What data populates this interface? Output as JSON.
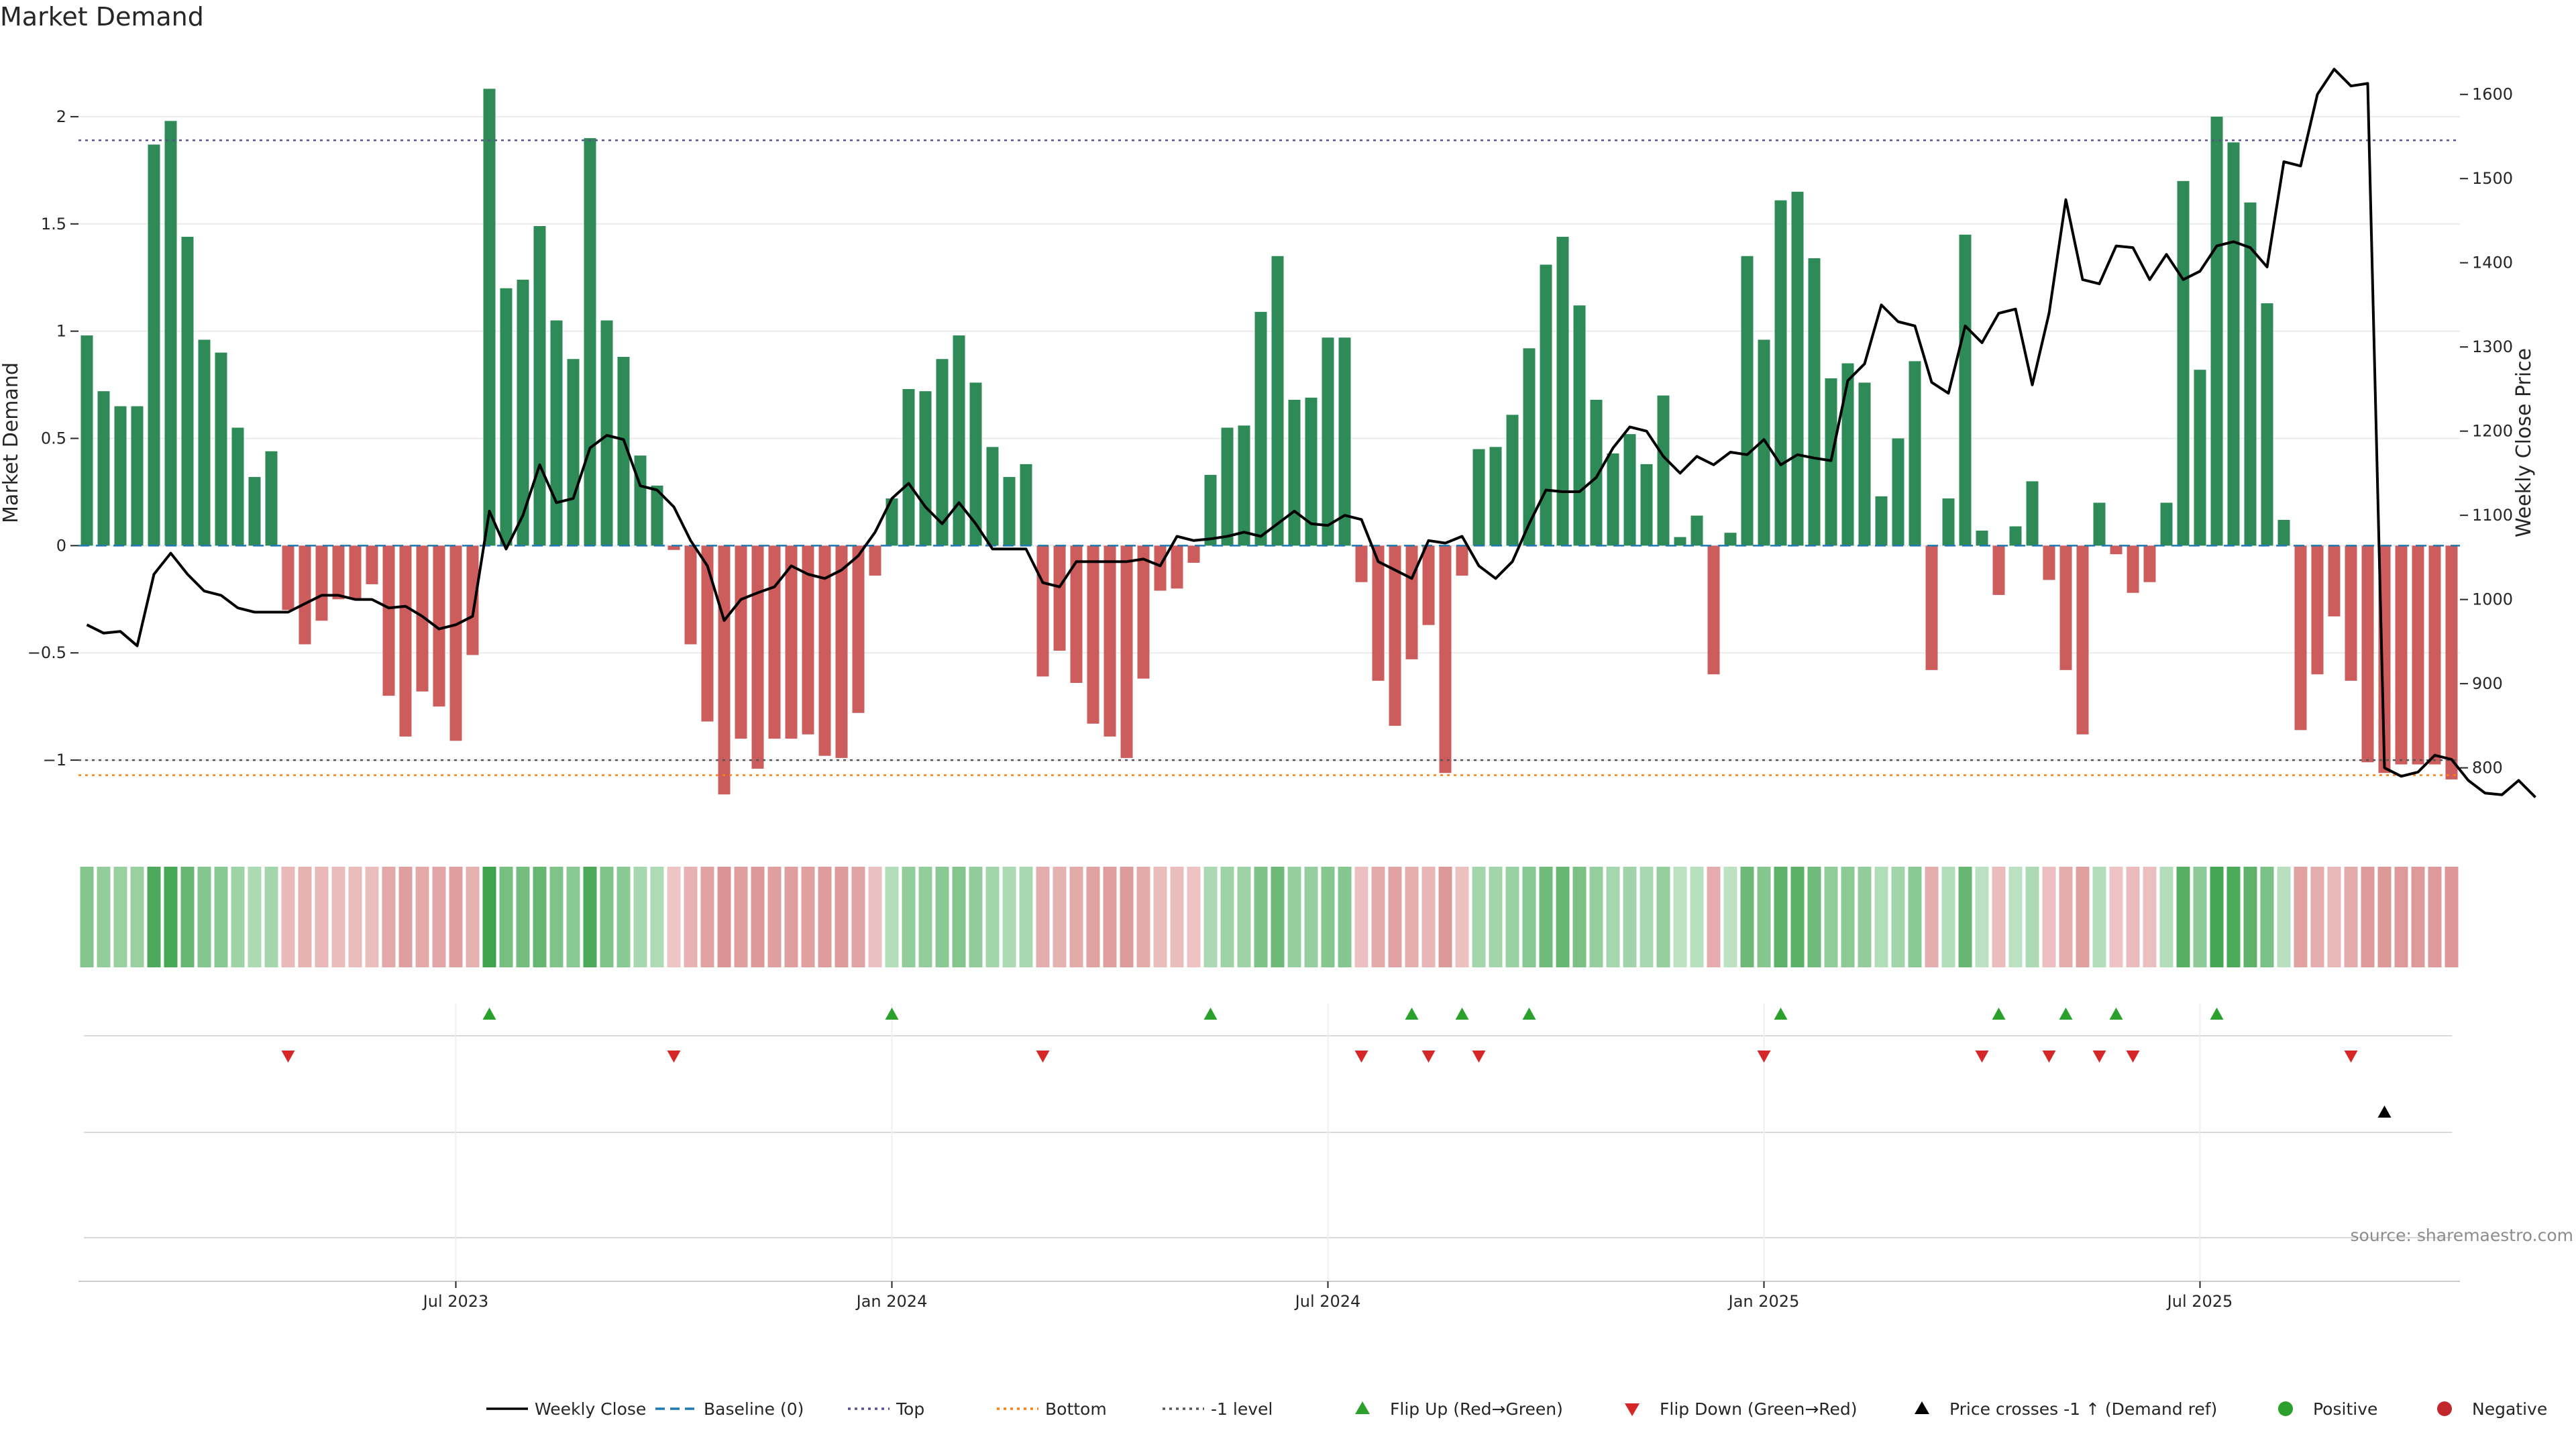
{
  "chart_data": {
    "type": "bar",
    "title": "Market Demand",
    "ylabel_left": "Market Demand",
    "ylabel_right": "Weekly Close Price",
    "ylim_left": [
      -1.35,
      2.3
    ],
    "ylim_right": [
      720,
      1650
    ],
    "yticks_left": [
      {
        "v": -1,
        "label": "−1"
      },
      {
        "v": -0.5,
        "label": "−0.5"
      },
      {
        "v": 0,
        "label": "0"
      },
      {
        "v": 0.5,
        "label": "0.5"
      },
      {
        "v": 1,
        "label": "1"
      },
      {
        "v": 1.5,
        "label": "1.5"
      },
      {
        "v": 2,
        "label": "2"
      }
    ],
    "yticks_right": [
      {
        "v": 800,
        "label": "800"
      },
      {
        "v": 900,
        "label": "900"
      },
      {
        "v": 1000,
        "label": "1000"
      },
      {
        "v": 1100,
        "label": "1100"
      },
      {
        "v": 1200,
        "label": "1200"
      },
      {
        "v": 1300,
        "label": "1300"
      },
      {
        "v": 1400,
        "label": "1400"
      },
      {
        "v": 1500,
        "label": "1500"
      },
      {
        "v": 1600,
        "label": "1600"
      }
    ],
    "x_dates": {
      "label": "Weekly",
      "week_count": 144
    },
    "xticks": [
      {
        "week": 22,
        "label": "Jul 2023"
      },
      {
        "week": 48,
        "label": "Jan 2024"
      },
      {
        "week": 74,
        "label": "Jul 2024"
      },
      {
        "week": 100,
        "label": "Jan 2025"
      },
      {
        "week": 126,
        "label": "Jul 2025"
      }
    ],
    "reference_lines": {
      "top": 1.89,
      "bottom": -1.07,
      "minus_one": -1.0,
      "baseline": 0
    },
    "demand": [
      0.98,
      0.72,
      0.65,
      0.65,
      1.87,
      1.98,
      1.44,
      0.96,
      0.9,
      0.55,
      0.32,
      0.44,
      -0.3,
      -0.46,
      -0.35,
      -0.25,
      -0.25,
      -0.18,
      -0.7,
      -0.89,
      -0.68,
      -0.75,
      -0.91,
      -0.51,
      2.13,
      1.2,
      1.24,
      1.49,
      1.05,
      0.87,
      1.9,
      1.05,
      0.88,
      0.42,
      0.28,
      -0.02,
      -0.46,
      -0.82,
      -1.16,
      -0.9,
      -1.04,
      -0.9,
      -0.9,
      -0.88,
      -0.98,
      -0.99,
      -0.78,
      -0.14,
      0.22,
      0.73,
      0.72,
      0.87,
      0.98,
      0.76,
      0.46,
      0.32,
      0.38,
      -0.61,
      -0.49,
      -0.64,
      -0.83,
      -0.89,
      -0.99,
      -0.62,
      -0.21,
      -0.2,
      -0.08,
      0.33,
      0.55,
      0.56,
      1.09,
      1.35,
      0.68,
      0.69,
      0.97,
      0.97,
      -0.17,
      -0.63,
      -0.84,
      -0.53,
      -0.37,
      -1.06,
      -0.14,
      0.45,
      0.46,
      0.61,
      0.92,
      1.31,
      1.44,
      1.12,
      0.68,
      0.43,
      0.52,
      0.38,
      0.7,
      0.04,
      0.14,
      -0.6,
      0.06,
      1.35,
      0.96,
      1.61,
      1.65,
      1.34,
      0.78,
      0.85,
      0.76,
      0.23,
      0.5,
      0.86,
      -0.58,
      0.22,
      1.45,
      0.07,
      -0.23,
      0.09,
      0.3,
      -0.16,
      -0.58,
      -0.88,
      0.2,
      -0.04,
      -0.22,
      -0.17,
      0.2,
      1.7,
      0.82,
      2.0,
      1.88,
      1.6,
      1.13,
      0.12,
      -0.86,
      -0.6,
      -0.33,
      -0.63,
      -1.01,
      -1.06,
      -1.02,
      -1.02,
      -1.02,
      -1.09
    ],
    "close": [
      970,
      960,
      962,
      945,
      1030,
      1055,
      1030,
      1010,
      1005,
      990,
      985,
      985,
      985,
      995,
      1005,
      1005,
      1000,
      1000,
      990,
      992,
      980,
      965,
      970,
      980,
      1105,
      1060,
      1100,
      1160,
      1115,
      1120,
      1180,
      1195,
      1190,
      1135,
      1130,
      1110,
      1070,
      1040,
      975,
      1000,
      1008,
      1015,
      1040,
      1030,
      1025,
      1035,
      1052,
      1080,
      1120,
      1138,
      1110,
      1090,
      1115,
      1090,
      1060,
      1060,
      1060,
      1020,
      1015,
      1045,
      1045,
      1045,
      1045,
      1048,
      1040,
      1075,
      1070,
      1072,
      1075,
      1080,
      1075,
      1090,
      1105,
      1090,
      1088,
      1100,
      1095,
      1045,
      1035,
      1025,
      1070,
      1067,
      1075,
      1040,
      1025,
      1045,
      1090,
      1130,
      1128,
      1128,
      1145,
      1180,
      1205,
      1200,
      1170,
      1150,
      1170,
      1160,
      1175,
      1172,
      1190,
      1160,
      1172,
      1168,
      1165,
      1260,
      1280,
      1350,
      1330,
      1325,
      1258,
      1245,
      1325,
      1305,
      1340,
      1345,
      1255,
      1340,
      1475,
      1380,
      1375,
      1420,
      1418,
      1380,
      1410,
      1380,
      1390,
      1420,
      1425,
      1418,
      1395,
      1520,
      1515,
      1600,
      1630,
      1610,
      1613,
      800,
      790,
      795,
      815,
      810,
      785,
      770,
      768,
      785,
      765
    ]
  },
  "legend": [
    {
      "label": "Weekly Close",
      "marker": "solid-line",
      "color": "#000000"
    },
    {
      "label": "Baseline (0)",
      "marker": "dashed-line",
      "color": "#1f77b4"
    },
    {
      "label": "Top",
      "marker": "dotted-line",
      "color": "#5a4e8c"
    },
    {
      "label": "Bottom",
      "marker": "dotted-line",
      "color": "#ff7f0e"
    },
    {
      "label": "-1 level",
      "marker": "dotted-line",
      "color": "#555555"
    },
    {
      "label": "Flip Up (Red→Green)",
      "marker": "triangle-up",
      "color": "#2ca02c"
    },
    {
      "label": "Flip Down (Green→Red)",
      "marker": "triangle-down",
      "color": "#d62728"
    },
    {
      "label": "Price crosses -1 ↑ (Demand ref)",
      "marker": "triangle-up",
      "color": "#000000"
    },
    {
      "label": "Positive",
      "marker": "circle",
      "color": "#2ca02c"
    },
    {
      "label": "Negative",
      "marker": "circle",
      "color": "#c0282d"
    }
  ],
  "source": "source: sharemaestro.com",
  "flip_up_weeks": [
    24,
    48,
    67,
    79,
    82,
    86,
    101,
    114,
    118,
    121,
    127
  ],
  "flip_down_weeks": [
    12,
    35,
    57,
    76,
    80,
    83,
    100,
    113,
    117,
    120,
    122,
    135
  ],
  "cross_weeks": [
    137
  ],
  "colors": {
    "positive_bar": "#2e8b57",
    "negative_bar": "#cd5c5c",
    "close_line": "#000000",
    "grid": "#ebebeb",
    "top_line": "#5a4e8c",
    "bottom_line": "#ff7f0e",
    "minus_one_line": "#555555",
    "baseline": "#1f77b4",
    "flip_up": "#2ca02c",
    "flip_down": "#d62728"
  }
}
